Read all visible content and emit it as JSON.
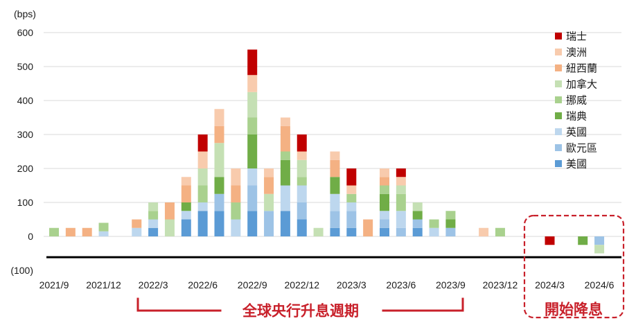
{
  "chart_data": {
    "type": "bar",
    "stacked": true,
    "ylabel": "(bps)",
    "ylim": [
      -100,
      600
    ],
    "yticks": [
      600,
      500,
      400,
      300,
      200,
      100,
      0,
      -100
    ],
    "ytick_labels": [
      "600",
      "500",
      "400",
      "300",
      "200",
      "100",
      "0",
      "(100)"
    ],
    "negative_tick_color": "#c00000",
    "grid": true,
    "legend": "top-right",
    "categories": [
      "2021/9",
      "2021/10",
      "2021/11",
      "2021/12",
      "2022/1",
      "2022/2",
      "2022/3",
      "2022/4",
      "2022/5",
      "2022/6",
      "2022/7",
      "2022/8",
      "2022/9",
      "2022/10",
      "2022/11",
      "2022/12",
      "2023/1",
      "2023/2",
      "2023/3",
      "2023/4",
      "2023/5",
      "2023/6",
      "2023/7",
      "2023/8",
      "2023/9",
      "2023/10",
      "2023/11",
      "2023/12",
      "2024/1",
      "2024/2",
      "2024/3",
      "2024/4",
      "2024/5",
      "2024/6"
    ],
    "xtick_labels": [
      "2021/9",
      "2021/12",
      "2022/3",
      "2022/6",
      "2022/9",
      "2022/12",
      "2023/3",
      "2023/6",
      "2023/9",
      "2023/12",
      "2024/3",
      "2024/6"
    ],
    "series": [
      {
        "name": "美國",
        "color": "#5b9bd5",
        "values": [
          0,
          0,
          0,
          0,
          0,
          0,
          25,
          0,
          50,
          75,
          75,
          0,
          75,
          0,
          75,
          50,
          0,
          25,
          25,
          0,
          25,
          0,
          25,
          0,
          0,
          0,
          0,
          0,
          0,
          0,
          0,
          0,
          0,
          0
        ]
      },
      {
        "name": "歐元區",
        "color": "#9dc3e6",
        "values": [
          0,
          0,
          0,
          0,
          0,
          0,
          0,
          0,
          0,
          0,
          50,
          0,
          75,
          75,
          0,
          50,
          0,
          50,
          50,
          0,
          25,
          25,
          25,
          0,
          25,
          0,
          0,
          0,
          0,
          0,
          0,
          0,
          0,
          -25
        ]
      },
      {
        "name": "英國",
        "color": "#bdd7ee",
        "values": [
          0,
          0,
          0,
          15,
          0,
          25,
          25,
          0,
          25,
          25,
          0,
          50,
          50,
          0,
          75,
          50,
          0,
          50,
          25,
          0,
          25,
          50,
          0,
          25,
          0,
          0,
          0,
          0,
          0,
          0,
          0,
          0,
          0,
          0
        ]
      },
      {
        "name": "瑞典",
        "color": "#70ad47",
        "values": [
          0,
          0,
          0,
          0,
          0,
          0,
          0,
          0,
          25,
          0,
          50,
          0,
          100,
          0,
          75,
          0,
          0,
          50,
          0,
          0,
          50,
          0,
          25,
          0,
          25,
          0,
          0,
          0,
          0,
          0,
          0,
          0,
          -25,
          0
        ]
      },
      {
        "name": "挪威",
        "color": "#a9d18e",
        "values": [
          25,
          0,
          0,
          25,
          0,
          0,
          25,
          0,
          0,
          50,
          0,
          50,
          50,
          0,
          25,
          25,
          0,
          0,
          25,
          0,
          25,
          50,
          0,
          25,
          25,
          0,
          0,
          25,
          0,
          0,
          0,
          0,
          0,
          0
        ]
      },
      {
        "name": "加拿大",
        "color": "#c5e0b4",
        "values": [
          0,
          0,
          0,
          0,
          0,
          0,
          25,
          50,
          0,
          50,
          100,
          0,
          75,
          50,
          0,
          50,
          25,
          0,
          0,
          0,
          0,
          25,
          25,
          0,
          0,
          0,
          0,
          0,
          0,
          0,
          0,
          0,
          0,
          -25
        ]
      },
      {
        "name": "紐西蘭",
        "color": "#f4b183",
        "values": [
          0,
          25,
          25,
          0,
          0,
          25,
          0,
          50,
          50,
          0,
          50,
          50,
          0,
          50,
          75,
          0,
          0,
          50,
          0,
          50,
          25,
          0,
          0,
          0,
          0,
          0,
          0,
          0,
          0,
          0,
          0,
          0,
          0,
          0
        ]
      },
      {
        "name": "澳洲",
        "color": "#f8cbad",
        "values": [
          0,
          0,
          0,
          0,
          0,
          0,
          0,
          0,
          25,
          50,
          50,
          50,
          50,
          25,
          25,
          25,
          0,
          25,
          25,
          0,
          25,
          25,
          0,
          0,
          0,
          0,
          25,
          0,
          0,
          0,
          0,
          0,
          0,
          0
        ]
      },
      {
        "name": "瑞士",
        "color": "#c00000",
        "values": [
          0,
          0,
          0,
          0,
          0,
          0,
          0,
          0,
          0,
          50,
          0,
          0,
          75,
          0,
          0,
          50,
          0,
          0,
          50,
          0,
          0,
          25,
          0,
          0,
          0,
          0,
          0,
          0,
          0,
          0,
          -25,
          0,
          0,
          0
        ]
      }
    ]
  },
  "annotations": {
    "hike_cycle": {
      "text": "全球央行升息週期",
      "color": "#c8202a"
    },
    "cut_start": {
      "text": "開始降息",
      "color": "#c8202a"
    }
  }
}
